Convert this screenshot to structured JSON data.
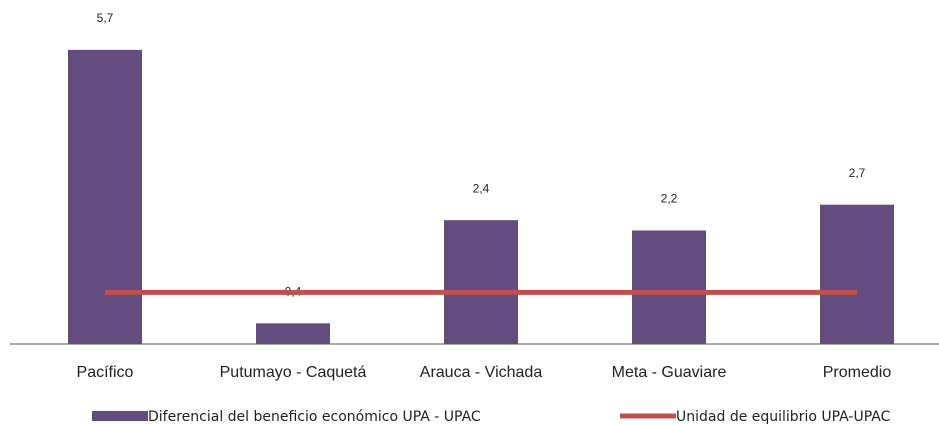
{
  "chart_data": {
    "type": "bar",
    "categories": [
      "Pacífico",
      "Putumayo - Caquetá",
      "Arauca - Vichada",
      "Meta - Guaviare",
      "Promedio"
    ],
    "series": [
      {
        "name": "Diferencial del beneficio económico UPA - UPAC",
        "type": "bar",
        "color": "#634d7e",
        "values": [
          5.7,
          0.4,
          2.4,
          2.2,
          2.7
        ],
        "value_labels": [
          "5,7",
          "0,4",
          "2,4",
          "2,2",
          "2,7"
        ]
      },
      {
        "name": "Unidad de equilibrio UPA-UPAC",
        "type": "line",
        "color": "#c0504d",
        "values": [
          1,
          1,
          1,
          1,
          1
        ]
      }
    ],
    "ylim": [
      0,
      6.5
    ],
    "grid": false,
    "legend": "bottom"
  }
}
